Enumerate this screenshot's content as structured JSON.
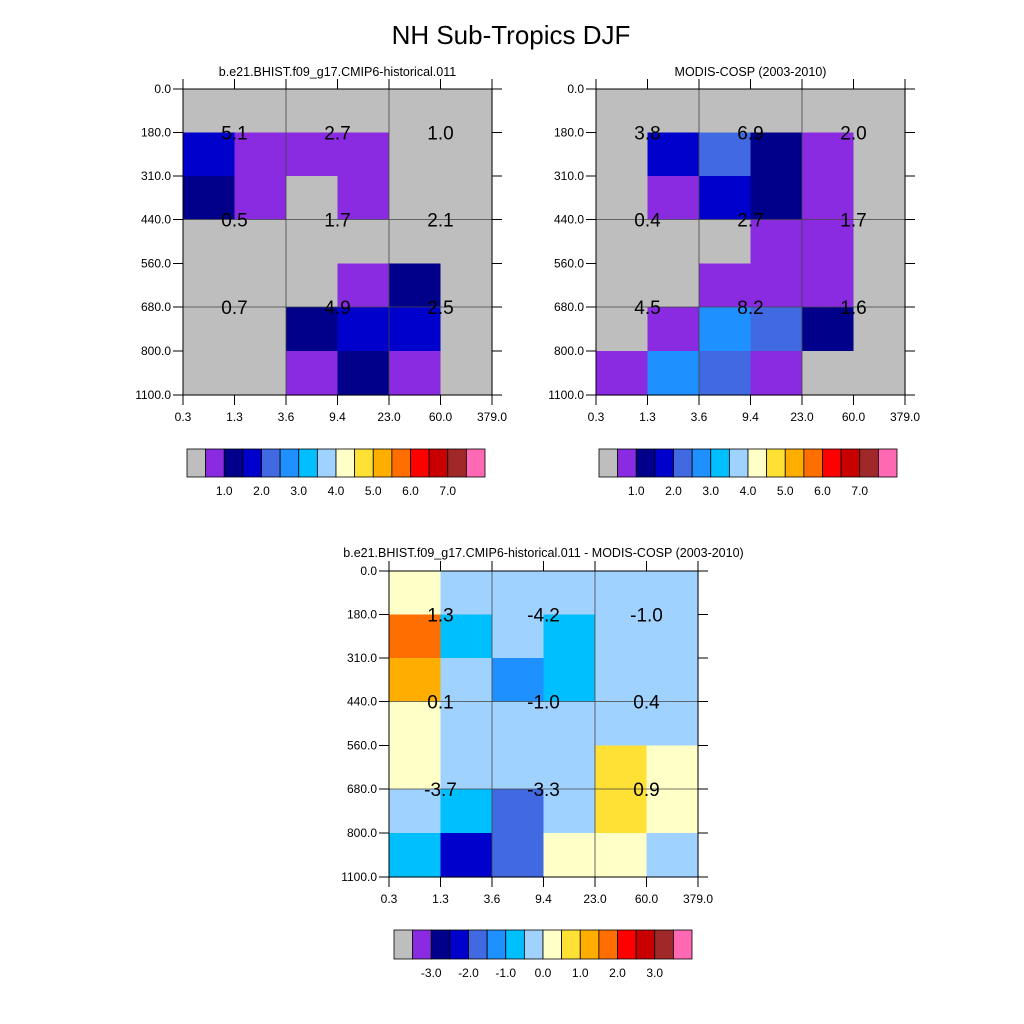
{
  "figure": {
    "title": "NH Sub-Tropics DJF"
  },
  "palettes": {
    "levels": [
      "#bebebe",
      "#8a2be2",
      "#00008b",
      "#0000cd",
      "#4169e1",
      "#1e90ff",
      "#00bfff",
      "#a0d2ff",
      "#ffffc8",
      "#ffe135",
      "#ffae00",
      "#ff6e00",
      "#ff0000",
      "#c80000",
      "#a02828",
      "#ff69b4"
    ],
    "missing": "#bebebe"
  },
  "chart_data": [
    {
      "type": "heatmap",
      "title": "b.e21.BHIST.f09_g17.CMIP6-historical.011",
      "x_ticks": [
        "0.3",
        "1.3",
        "3.6",
        "9.4",
        "23.0",
        "60.0",
        "379.0"
      ],
      "y_ticks": [
        "0.0",
        "180.0",
        "310.0",
        "440.0",
        "560.0",
        "680.0",
        "800.0",
        "1100.0"
      ],
      "cell_levels": [
        [
          0,
          0,
          0,
          0,
          0,
          0
        ],
        [
          3,
          1,
          1,
          1,
          0,
          0
        ],
        [
          2,
          1,
          0,
          1,
          0,
          0
        ],
        [
          0,
          0,
          0,
          0,
          0,
          0
        ],
        [
          0,
          0,
          0,
          1,
          2,
          0
        ],
        [
          0,
          0,
          2,
          3,
          3,
          0
        ],
        [
          0,
          0,
          1,
          2,
          1,
          0
        ]
      ],
      "block_values": [
        [
          "5.1",
          "2.7",
          "1.0"
        ],
        [
          "0.5",
          "1.7",
          "2.1"
        ],
        [
          "0.7",
          "4.9",
          "2.5"
        ]
      ],
      "colorbar_labels": [
        "1.0",
        "2.0",
        "3.0",
        "4.0",
        "5.0",
        "6.0",
        "7.0"
      ]
    },
    {
      "type": "heatmap",
      "title": "MODIS-COSP (2003-2010)",
      "x_ticks": [
        "0.3",
        "1.3",
        "3.6",
        "9.4",
        "23.0",
        "60.0",
        "379.0"
      ],
      "y_ticks": [
        "0.0",
        "180.0",
        "310.0",
        "440.0",
        "560.0",
        "680.0",
        "800.0",
        "1100.0"
      ],
      "cell_levels": [
        [
          0,
          0,
          0,
          0,
          0,
          0
        ],
        [
          0,
          3,
          4,
          2,
          1,
          0
        ],
        [
          0,
          1,
          3,
          2,
          1,
          0
        ],
        [
          0,
          0,
          0,
          1,
          1,
          0
        ],
        [
          0,
          0,
          1,
          1,
          1,
          0
        ],
        [
          0,
          1,
          5,
          4,
          2,
          0
        ],
        [
          1,
          5,
          4,
          1,
          0,
          0
        ]
      ],
      "block_values": [
        [
          "3.8",
          "6.9",
          "2.0"
        ],
        [
          "0.4",
          "2.7",
          "1.7"
        ],
        [
          "4.5",
          "8.2",
          "1.6"
        ]
      ],
      "colorbar_labels": [
        "1.0",
        "2.0",
        "3.0",
        "4.0",
        "5.0",
        "6.0",
        "7.0"
      ]
    },
    {
      "type": "heatmap",
      "title": "b.e21.BHIST.f09_g17.CMIP6-historical.011 - MODIS-COSP (2003-2010)",
      "x_ticks": [
        "0.3",
        "1.3",
        "3.6",
        "9.4",
        "23.0",
        "60.0",
        "379.0"
      ],
      "y_ticks": [
        "0.0",
        "180.0",
        "310.0",
        "440.0",
        "560.0",
        "680.0",
        "800.0",
        "1100.0"
      ],
      "cell_levels": [
        [
          8,
          7,
          7,
          7,
          7,
          7
        ],
        [
          11,
          6,
          7,
          6,
          7,
          7
        ],
        [
          10,
          7,
          5,
          6,
          7,
          7
        ],
        [
          8,
          7,
          7,
          7,
          7,
          7
        ],
        [
          8,
          7,
          7,
          7,
          9,
          8
        ],
        [
          7,
          6,
          4,
          7,
          9,
          8
        ],
        [
          6,
          3,
          4,
          8,
          8,
          7
        ]
      ],
      "block_values": [
        [
          "1.3",
          "-4.2",
          "-1.0"
        ],
        [
          "0.1",
          "-1.0",
          "0.4"
        ],
        [
          "-3.7",
          "-3.3",
          "0.9"
        ]
      ],
      "colorbar_labels": [
        "-3.0",
        "-2.0",
        "-1.0",
        "0.0",
        "1.0",
        "2.0",
        "3.0"
      ]
    }
  ]
}
